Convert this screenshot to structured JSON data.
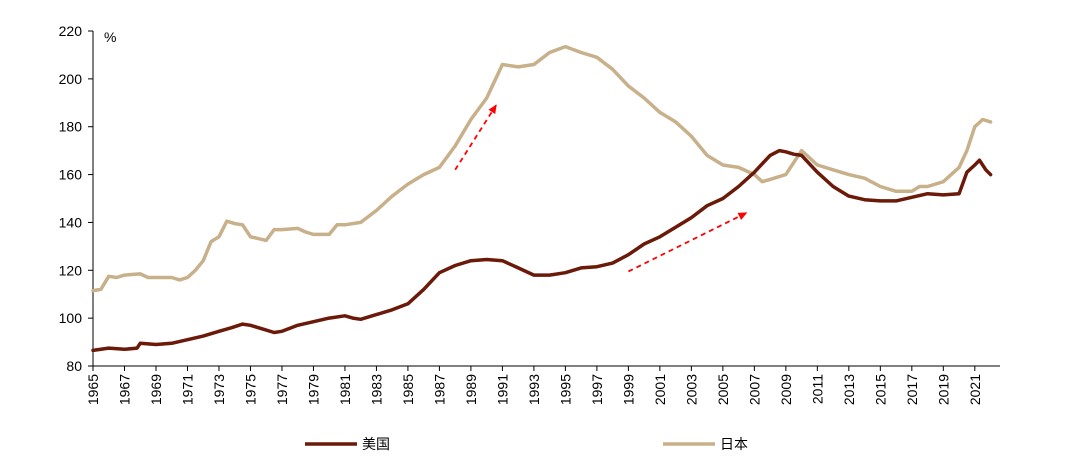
{
  "chart_data": {
    "type": "line",
    "title": "",
    "xlabel": "",
    "ylabel": "%",
    "xlim": [
      1965,
      2022.6
    ],
    "ylim": [
      80,
      220
    ],
    "y_ticks": [
      80,
      100,
      120,
      140,
      160,
      180,
      200,
      220
    ],
    "x_ticks": [
      "1965",
      "1967",
      "1969",
      "1971",
      "1973",
      "1975",
      "1977",
      "1979",
      "1981",
      "1983",
      "1985",
      "1987",
      "1989",
      "1991",
      "1993",
      "1995",
      "1997",
      "1999",
      "2001",
      "2003",
      "2005",
      "2007",
      "2009",
      "2011",
      "2013",
      "2015",
      "2017",
      "2019",
      "2021"
    ],
    "grid": false,
    "legend_position": "bottom",
    "series": [
      {
        "name": "美国",
        "color": "#6b1a0a",
        "points": [
          [
            1965.0,
            86.5
          ],
          [
            1966.0,
            87.5
          ],
          [
            1967.0,
            87
          ],
          [
            1967.8,
            87.5
          ],
          [
            1968.0,
            89.5
          ],
          [
            1969.0,
            89
          ],
          [
            1970.0,
            89.5
          ],
          [
            1971.0,
            91
          ],
          [
            1972.0,
            92.5
          ],
          [
            1973.0,
            94.5
          ],
          [
            1973.8,
            96
          ],
          [
            1974.5,
            97.5
          ],
          [
            1975.0,
            97
          ],
          [
            1976.0,
            95
          ],
          [
            1976.5,
            94
          ],
          [
            1977.0,
            94.5
          ],
          [
            1978.0,
            97
          ],
          [
            1979.0,
            98.5
          ],
          [
            1980.0,
            100
          ],
          [
            1981.0,
            101
          ],
          [
            1981.5,
            100
          ],
          [
            1982.0,
            99.5
          ],
          [
            1983.0,
            101.5
          ],
          [
            1984.0,
            103.5
          ],
          [
            1985.0,
            106
          ],
          [
            1986.0,
            112
          ],
          [
            1987.0,
            119
          ],
          [
            1988.0,
            122
          ],
          [
            1989.0,
            124
          ],
          [
            1990.0,
            124.5
          ],
          [
            1991.0,
            124
          ],
          [
            1992.0,
            121
          ],
          [
            1993.0,
            118
          ],
          [
            1994.0,
            118
          ],
          [
            1995.0,
            119
          ],
          [
            1996.0,
            121
          ],
          [
            1997.0,
            121.5
          ],
          [
            1998.0,
            123
          ],
          [
            1999.0,
            126.5
          ],
          [
            2000.0,
            131
          ],
          [
            2001.0,
            134
          ],
          [
            2002.0,
            138
          ],
          [
            2003.0,
            142
          ],
          [
            2004.0,
            147
          ],
          [
            2005.0,
            150
          ],
          [
            2006.0,
            155
          ],
          [
            2007.0,
            161
          ],
          [
            2008.0,
            168
          ],
          [
            2008.6,
            170
          ],
          [
            2009.0,
            169.5
          ],
          [
            2009.5,
            168.5
          ],
          [
            2010.0,
            168
          ],
          [
            2011.0,
            161
          ],
          [
            2012.0,
            155
          ],
          [
            2013.0,
            151
          ],
          [
            2014.0,
            149.5
          ],
          [
            2015.0,
            149
          ],
          [
            2016.0,
            149
          ],
          [
            2017.0,
            150.5
          ],
          [
            2018.0,
            152
          ],
          [
            2019.0,
            151.5
          ],
          [
            2020.0,
            152
          ],
          [
            2020.5,
            161
          ],
          [
            2021.0,
            164
          ],
          [
            2021.3,
            166
          ],
          [
            2021.7,
            162
          ],
          [
            2022.0,
            160
          ]
        ]
      },
      {
        "name": "日本",
        "color": "#c8b08a",
        "points": [
          [
            1965.0,
            111.5
          ],
          [
            1965.5,
            112
          ],
          [
            1966.0,
            117.5
          ],
          [
            1966.5,
            117
          ],
          [
            1967.0,
            118
          ],
          [
            1968.0,
            118.5
          ],
          [
            1968.5,
            117
          ],
          [
            1969.0,
            117
          ],
          [
            1970.0,
            117
          ],
          [
            1970.5,
            116
          ],
          [
            1971.0,
            117
          ],
          [
            1971.5,
            120
          ],
          [
            1972.0,
            124
          ],
          [
            1972.5,
            132
          ],
          [
            1973.0,
            134
          ],
          [
            1973.5,
            140.5
          ],
          [
            1974.0,
            139.5
          ],
          [
            1974.5,
            139
          ],
          [
            1975.0,
            134
          ],
          [
            1976.0,
            132.5
          ],
          [
            1976.5,
            137
          ],
          [
            1977.0,
            137
          ],
          [
            1978.0,
            137.5
          ],
          [
            1978.5,
            136
          ],
          [
            1979.0,
            135
          ],
          [
            1980.0,
            135
          ],
          [
            1980.5,
            139
          ],
          [
            1981.0,
            139
          ],
          [
            1982.0,
            140
          ],
          [
            1983.0,
            145
          ],
          [
            1984.0,
            151
          ],
          [
            1985.0,
            156
          ],
          [
            1986.0,
            160
          ],
          [
            1987.0,
            163
          ],
          [
            1988.0,
            172
          ],
          [
            1989.0,
            183
          ],
          [
            1990.0,
            192
          ],
          [
            1991.0,
            206
          ],
          [
            1992.0,
            205
          ],
          [
            1993.0,
            206
          ],
          [
            1994.0,
            211
          ],
          [
            1995.0,
            213.5
          ],
          [
            1996.0,
            211
          ],
          [
            1997.0,
            209
          ],
          [
            1998.0,
            204
          ],
          [
            1999.0,
            197
          ],
          [
            2000.0,
            192
          ],
          [
            2001.0,
            186
          ],
          [
            2002.0,
            182
          ],
          [
            2003.0,
            176
          ],
          [
            2004.0,
            168
          ],
          [
            2005.0,
            164
          ],
          [
            2006.0,
            163
          ],
          [
            2007.0,
            160
          ],
          [
            2007.5,
            157
          ],
          [
            2008.0,
            158
          ],
          [
            2009.0,
            160
          ],
          [
            2010.0,
            170
          ],
          [
            2011.0,
            164
          ],
          [
            2012.0,
            162
          ],
          [
            2013.0,
            160
          ],
          [
            2014.0,
            158.5
          ],
          [
            2015.0,
            155
          ],
          [
            2016.0,
            153
          ],
          [
            2017.0,
            153
          ],
          [
            2017.5,
            155
          ],
          [
            2018.0,
            155
          ],
          [
            2019.0,
            157
          ],
          [
            2020.0,
            163
          ],
          [
            2020.5,
            170
          ],
          [
            2021.0,
            180
          ],
          [
            2021.5,
            183
          ],
          [
            2022.0,
            182
          ]
        ]
      }
    ],
    "annotations": [
      {
        "type": "arrow",
        "style": "dashed",
        "color": "#ff0000",
        "from": [
          1988.0,
          162
        ],
        "to": [
          1990.6,
          189
        ]
      },
      {
        "type": "arrow",
        "style": "dashed",
        "color": "#ff0000",
        "from": [
          1999.0,
          119.5
        ],
        "to": [
          2006.5,
          144
        ]
      }
    ]
  }
}
